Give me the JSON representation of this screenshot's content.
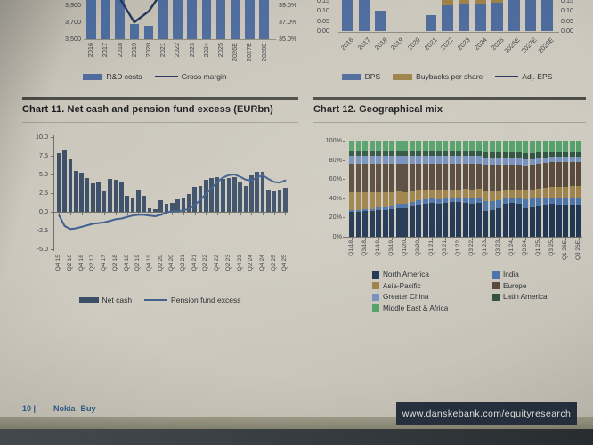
{
  "titles": {
    "chart11": "Chart 11. Net cash and pension fund excess (EURbn)",
    "chart12": "Chart 12. Geographical mix"
  },
  "footer": {
    "page_number": "10 |",
    "doc_name": "Nokia",
    "rating": "Buy",
    "url_bar": "www.danskebank.com/equityresearch"
  },
  "colors": {
    "steel_blue_bar": "#4d6b9c",
    "navy_line": "#24385c",
    "tan_bar": "#9d8148",
    "netcash_bar": "#3c4f68",
    "pension_line": "#3f5e8c",
    "footer_bar_bg": "#27313f",
    "axis_text": "#393e45"
  },
  "chart_data": [
    {
      "id": "rd-costs-gross-margin",
      "type": "bar",
      "clipped_top": true,
      "categories": [
        "2016",
        "2017",
        "2018",
        "2019",
        "2020",
        "2021",
        "2022",
        "2023",
        "2024",
        "2025",
        "2026E",
        "2027E",
        "2028E"
      ],
      "series": [
        {
          "name": "R&D costs",
          "type": "bar",
          "color": "#4d6b9c",
          "values": [
            4150,
            4150,
            4020,
            3680,
            3660,
            4080,
            4150,
            4140,
            4100,
            4060,
            4070,
            4070,
            4070
          ]
        },
        {
          "name": "Gross margin",
          "type": "line",
          "axis": "right",
          "color": "#24385c",
          "values": [
            41.5,
            40.8,
            39.8,
            37.0,
            38.3,
            40.8,
            41.5,
            41.2,
            41.0,
            41.0,
            41.2,
            41.3,
            41.4
          ]
        }
      ],
      "left_axis": {
        "tick_labels": [
          "3,900",
          "3,700",
          "3,500"
        ],
        "tick_values": [
          3900,
          3700,
          3500
        ]
      },
      "right_axis": {
        "tick_labels": [
          "39.0%",
          "37.0%",
          "35.0%"
        ],
        "tick_values": [
          39,
          37,
          35
        ]
      }
    },
    {
      "id": "dps-buybacks-adj-eps",
      "type": "bar",
      "clipped_top": true,
      "categories": [
        "2016",
        "2017",
        "2018",
        "2019",
        "2020",
        "2021",
        "2022",
        "2023",
        "2024",
        "2025",
        "2026E",
        "2027E",
        "2028E"
      ],
      "series": [
        {
          "name": "DPS",
          "type": "bar",
          "color": "#4d6b9c",
          "values": [
            0.26,
            0.2,
            0.1,
            0,
            0,
            0.08,
            0.125,
            0.135,
            0.135,
            0.14,
            0.19,
            0.19,
            0.19
          ]
        },
        {
          "name": "Buybacks per share",
          "type": "bar",
          "stack": true,
          "color": "#9d8148",
          "values": [
            0,
            0,
            0,
            0,
            0,
            0,
            0.05,
            0.04,
            0.04,
            0.03,
            0,
            0,
            0
          ]
        },
        {
          "name": "Adj. EPS",
          "type": "line",
          "color": "#24385c",
          "values": null,
          "visible_in_crop": false
        }
      ],
      "left_axis": {
        "tick_labels": [
          "0.15",
          "0.10",
          "0.05",
          "0.00"
        ],
        "tick_values": [
          0.15,
          0.1,
          0.05,
          0
        ]
      },
      "right_axis": {
        "tick_labels": [
          "0.15",
          "0.10",
          "0.05",
          "0.00"
        ],
        "tick_values": [
          0.15,
          0.1,
          0.05,
          0
        ]
      }
    },
    {
      "id": "net-cash-pension-fund-excess",
      "type": "bar",
      "title": "Chart 11. Net cash and pension fund excess (EURbn)",
      "ylim": [
        -5,
        10
      ],
      "label_every": 2,
      "x_tick_labels": [
        "Q4 15",
        "Q2 16",
        "Q4 16",
        "Q2 17",
        "Q4 17",
        "Q2 18",
        "Q4 18",
        "Q2 19",
        "Q4 19",
        "Q2 20",
        "Q4 20",
        "Q2 21",
        "Q4 21",
        "Q2 22",
        "Q4 22",
        "Q2 23",
        "Q4 23",
        "Q2 24",
        "Q4 24",
        "Q2 25",
        "Q4 25"
      ],
      "y_axis": {
        "tick_labels": [
          "10.0",
          "7.5",
          "5.0",
          "2.5",
          "0.0",
          "-2.5",
          "-5.0"
        ],
        "tick_values": [
          10,
          7.5,
          5,
          2.5,
          0,
          -2.5,
          -5
        ]
      },
      "series": [
        {
          "name": "Net cash",
          "type": "bar",
          "color": "#3c4f68",
          "values": [
            7.8,
            8.3,
            7.0,
            5.5,
            5.2,
            4.5,
            3.8,
            3.9,
            2.7,
            4.4,
            4.3,
            4.1,
            2.1,
            1.8,
            3.0,
            2.1,
            0.5,
            0.3,
            1.6,
            1.1,
            1.2,
            1.7,
            1.9,
            2.4,
            3.3,
            3.5,
            4.3,
            4.5,
            4.6,
            4.4,
            4.5,
            4.7,
            4.1,
            3.4,
            4.9,
            5.3,
            5.3,
            2.9,
            2.7,
            2.8,
            3.2
          ]
        },
        {
          "name": "Pension fund excess",
          "type": "line",
          "color": "#3f5e8c",
          "values": [
            -0.5,
            -1.9,
            -2.3,
            -2.2,
            -2.0,
            -1.8,
            -1.6,
            -1.5,
            -1.4,
            -1.2,
            -1.0,
            -0.9,
            -0.7,
            -0.5,
            -0.4,
            -0.4,
            -0.5,
            -0.6,
            -0.4,
            -0.1,
            0.1,
            0.1,
            0.2,
            0.4,
            0.9,
            1.6,
            2.4,
            3.2,
            4.0,
            4.6,
            4.9,
            5.0,
            4.7,
            4.3,
            4.2,
            4.6,
            4.9,
            4.4,
            4.0,
            3.9,
            4.2
          ]
        }
      ]
    },
    {
      "id": "geographical-mix",
      "type": "bar",
      "variant": "stacked-100",
      "title": "Chart 12. Geographical mix",
      "label_every": 2,
      "x_tick_labels": [
        "Q1/18",
        "Q3/18",
        "Q1/19",
        "Q3/19",
        "Q1/20",
        "Q3/20",
        "Q1 21",
        "Q3 21",
        "Q1 22",
        "Q3 22",
        "Q1 23",
        "Q3 23",
        "Q1 24",
        "Q3 24",
        "Q1 25",
        "Q3 25",
        "Q1 26E",
        "Q3 26E"
      ],
      "y_axis": {
        "tick_labels": [
          "100%",
          "80%",
          "60%",
          "40%",
          "20%",
          "0%"
        ],
        "tick_values": [
          100,
          80,
          60,
          40,
          20,
          0
        ]
      },
      "series": [
        {
          "name": "North America",
          "color": "#1f3550",
          "values": [
            26,
            26,
            27,
            27,
            28,
            28,
            29,
            30,
            30,
            32,
            33,
            34,
            35,
            34,
            35,
            36,
            36,
            35,
            34,
            35,
            27,
            28,
            30,
            34,
            35,
            34,
            30,
            31,
            32,
            33,
            34,
            33,
            33,
            33,
            33
          ]
        },
        {
          "name": "India",
          "color": "#4a72a8",
          "values": [
            2,
            2,
            2,
            2,
            3,
            3,
            3,
            4,
            4,
            4,
            5,
            5,
            5,
            5,
            5,
            5,
            5,
            6,
            6,
            6,
            10,
            9,
            8,
            6,
            6,
            7,
            9,
            9,
            8,
            8,
            7,
            8,
            8,
            8,
            8
          ]
        },
        {
          "name": "Asia-Pacific",
          "color": "#9d8148",
          "values": [
            18,
            18,
            17,
            17,
            15,
            15,
            14,
            13,
            12,
            11,
            10,
            9,
            8,
            9,
            9,
            8,
            8,
            9,
            9,
            9,
            10,
            10,
            9,
            8,
            8,
            8,
            9,
            9,
            10,
            10,
            11,
            11,
            11,
            12,
            12
          ]
        },
        {
          "name": "Europe",
          "color": "#57483a",
          "values": [
            30,
            30,
            30,
            30,
            30,
            30,
            30,
            29,
            30,
            29,
            28,
            28,
            28,
            28,
            27,
            27,
            27,
            26,
            27,
            26,
            28,
            28,
            28,
            27,
            26,
            26,
            26,
            26,
            26,
            26,
            26,
            26,
            26,
            25,
            25
          ]
        },
        {
          "name": "Greater China",
          "color": "#7490bd",
          "values": [
            8,
            8,
            8,
            8,
            8,
            8,
            8,
            8,
            8,
            8,
            8,
            8,
            8,
            8,
            8,
            8,
            8,
            8,
            8,
            8,
            7,
            7,
            7,
            7,
            7,
            7,
            7,
            6,
            6,
            5,
            5,
            5,
            5,
            5,
            5
          ]
        },
        {
          "name": "Latin America",
          "color": "#2d5440",
          "values": [
            5,
            5,
            5,
            5,
            5,
            5,
            5,
            5,
            5,
            5,
            5,
            5,
            5,
            5,
            5,
            5,
            5,
            5,
            5,
            5,
            6,
            6,
            6,
            6,
            6,
            6,
            6,
            6,
            6,
            6,
            5,
            5,
            5,
            5,
            5
          ]
        },
        {
          "name": "Middle East & Africa",
          "color": "#53a06a",
          "values": [
            11,
            11,
            11,
            11,
            11,
            11,
            11,
            11,
            11,
            11,
            11,
            11,
            11,
            11,
            11,
            11,
            11,
            11,
            11,
            11,
            12,
            12,
            12,
            12,
            12,
            12,
            13,
            13,
            12,
            12,
            12,
            12,
            12,
            12,
            12
          ]
        }
      ]
    }
  ]
}
